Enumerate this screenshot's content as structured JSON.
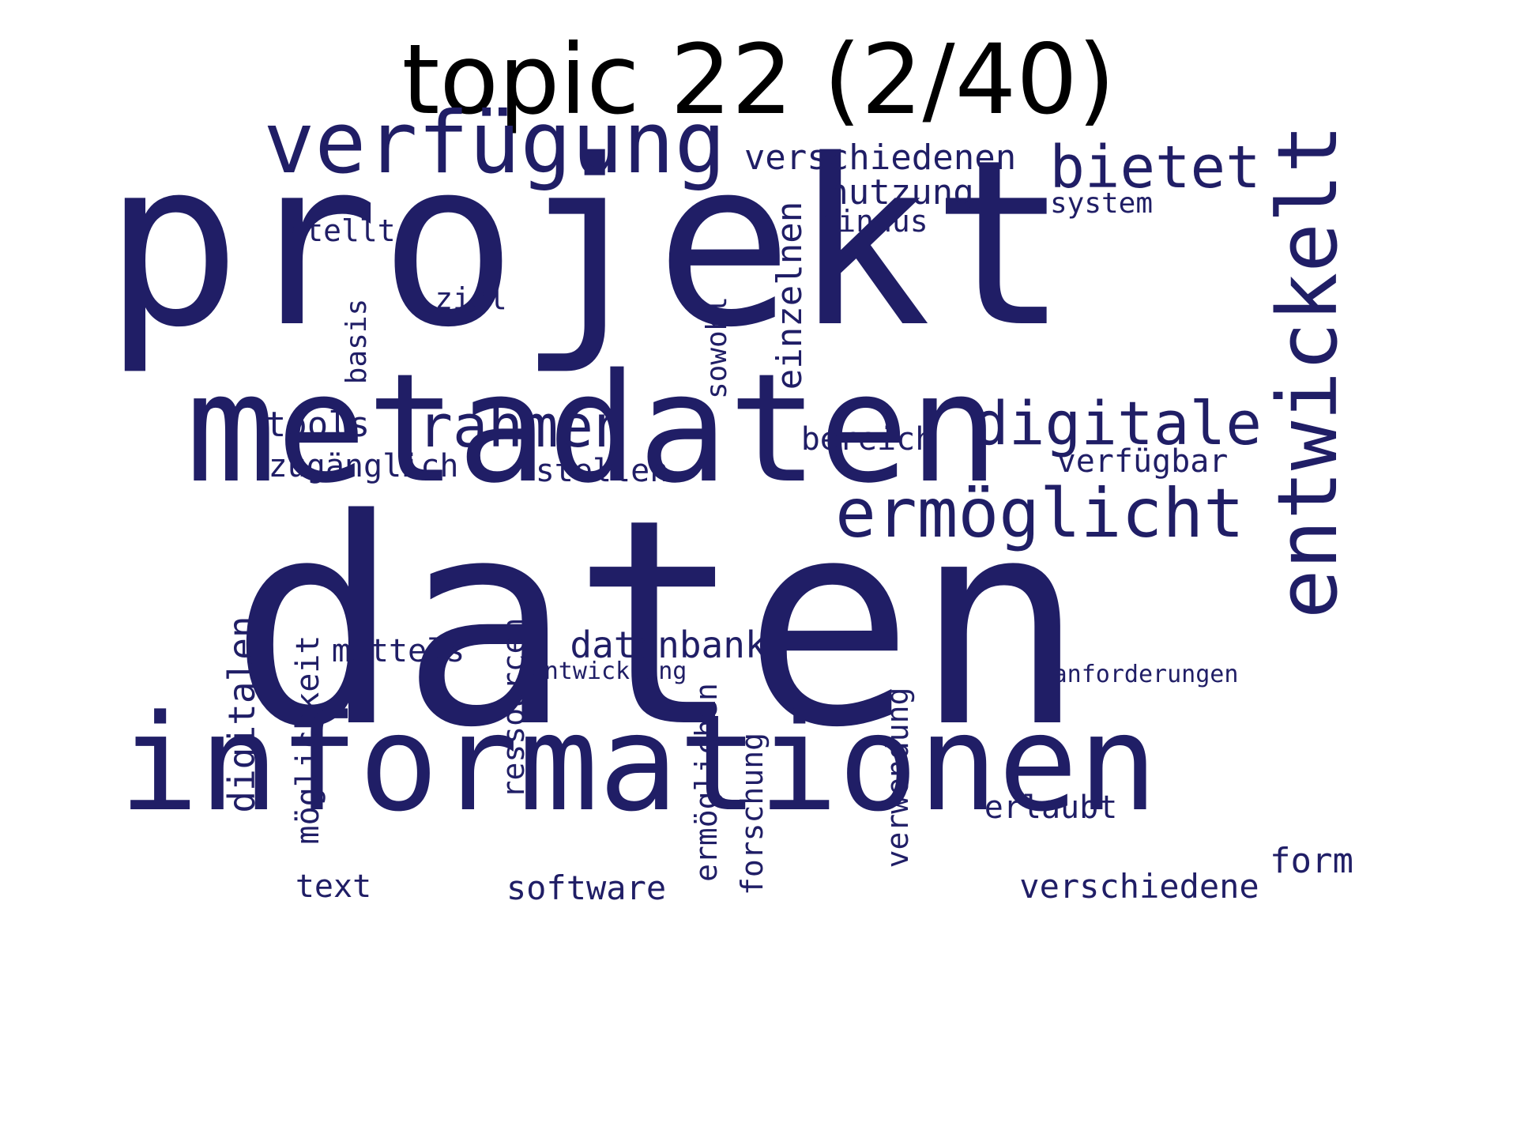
{
  "title": "topic 22 (2/40)",
  "colors": {
    "background": "#ffffff",
    "title": "#000000",
    "words": "#201e66"
  },
  "words": [
    {
      "text": "daten",
      "orientation": "horizontal"
    },
    {
      "text": "projekt",
      "orientation": "horizontal"
    },
    {
      "text": "metadaten",
      "orientation": "horizontal"
    },
    {
      "text": "informationen",
      "orientation": "horizontal"
    },
    {
      "text": "verfügung",
      "orientation": "horizontal"
    },
    {
      "text": "entwickelt",
      "orientation": "vertical"
    },
    {
      "text": "ermöglicht",
      "orientation": "horizontal"
    },
    {
      "text": "digitale",
      "orientation": "horizontal"
    },
    {
      "text": "rahmen",
      "orientation": "horizontal"
    },
    {
      "text": "bietet",
      "orientation": "horizontal"
    },
    {
      "text": "verschiedenen",
      "orientation": "horizontal"
    },
    {
      "text": "nutzung",
      "orientation": "horizontal"
    },
    {
      "text": "system",
      "orientation": "horizontal"
    },
    {
      "text": "hinaus",
      "orientation": "horizontal"
    },
    {
      "text": "stellt",
      "orientation": "horizontal"
    },
    {
      "text": "einzelnen",
      "orientation": "vertical"
    },
    {
      "text": "ziel",
      "orientation": "horizontal"
    },
    {
      "text": "basis",
      "orientation": "vertical"
    },
    {
      "text": "sowohl",
      "orientation": "vertical"
    },
    {
      "text": "tools",
      "orientation": "horizontal"
    },
    {
      "text": "bereich",
      "orientation": "horizontal"
    },
    {
      "text": "verfügbar",
      "orientation": "horizontal"
    },
    {
      "text": "zugänglich",
      "orientation": "horizontal"
    },
    {
      "text": "stellen",
      "orientation": "horizontal"
    },
    {
      "text": "datenbank",
      "orientation": "horizontal"
    },
    {
      "text": "mittels",
      "orientation": "horizontal"
    },
    {
      "text": "entwicklung",
      "orientation": "horizontal"
    },
    {
      "text": "anforderungen",
      "orientation": "horizontal"
    },
    {
      "text": "digitalen",
      "orientation": "vertical"
    },
    {
      "text": "möglichkeit",
      "orientation": "vertical"
    },
    {
      "text": "ressourcen",
      "orientation": "vertical"
    },
    {
      "text": "ermöglichen",
      "orientation": "vertical"
    },
    {
      "text": "forschung",
      "orientation": "vertical"
    },
    {
      "text": "verwendung",
      "orientation": "vertical"
    },
    {
      "text": "erlaubt",
      "orientation": "horizontal"
    },
    {
      "text": "form",
      "orientation": "horizontal"
    },
    {
      "text": "text",
      "orientation": "horizontal"
    },
    {
      "text": "software",
      "orientation": "horizontal"
    },
    {
      "text": "verschiedene",
      "orientation": "horizontal"
    }
  ]
}
